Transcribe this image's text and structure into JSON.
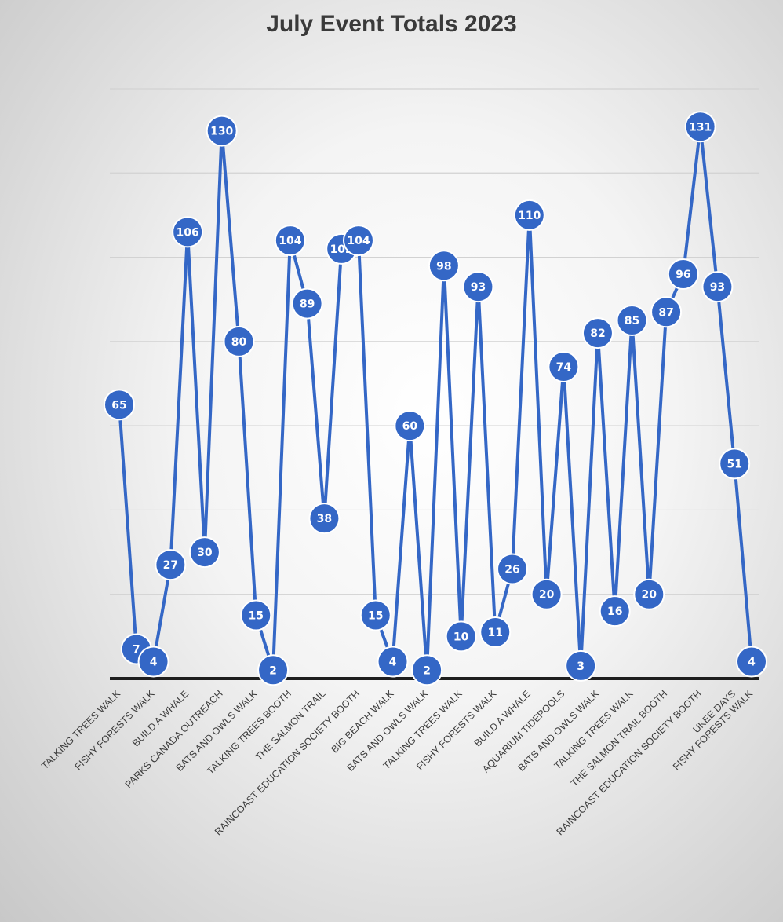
{
  "chart_data": {
    "type": "line",
    "title": "July Event Totals 2023",
    "xlabel": "",
    "ylabel": "",
    "ylim": [
      0,
      140
    ],
    "grid": true,
    "legend": "none",
    "line_color": "#3467C6",
    "points": [
      {
        "value": 65,
        "category": "TALKING TREES WALK"
      },
      {
        "value": 7,
        "category": ""
      },
      {
        "value": 4,
        "category": "FISHY FORESTS WALK"
      },
      {
        "value": 27,
        "category": ""
      },
      {
        "value": 106,
        "category": "BUILD A WHALE"
      },
      {
        "value": 30,
        "category": ""
      },
      {
        "value": 130,
        "category": "PARKS CANADA OUTREACH"
      },
      {
        "value": 80,
        "category": ""
      },
      {
        "value": 15,
        "category": "BATS AND OWLS WALK"
      },
      {
        "value": 2,
        "category": ""
      },
      {
        "value": 104,
        "category": "TALKING TREES BOOTH"
      },
      {
        "value": 89,
        "category": ""
      },
      {
        "value": 38,
        "category": "THE SALMON TRAIL"
      },
      {
        "value": 102,
        "category": ""
      },
      {
        "value": 104,
        "category": "RAINCOAST EDUCATION SOCIETY BOOTH"
      },
      {
        "value": 15,
        "category": ""
      },
      {
        "value": 4,
        "category": "BIG BEACH WALK"
      },
      {
        "value": 60,
        "category": ""
      },
      {
        "value": 2,
        "category": "BATS AND OWLS WALK"
      },
      {
        "value": 98,
        "category": ""
      },
      {
        "value": 10,
        "category": "TALKING TREES WALK"
      },
      {
        "value": 93,
        "category": ""
      },
      {
        "value": 11,
        "category": "FISHY FORESTS WALK"
      },
      {
        "value": 26,
        "category": ""
      },
      {
        "value": 110,
        "category": "BUILD A WHALE"
      },
      {
        "value": 20,
        "category": ""
      },
      {
        "value": 74,
        "category": "AQUARIUM TIDEPOOLS"
      },
      {
        "value": 3,
        "category": ""
      },
      {
        "value": 82,
        "category": "BATS AND OWLS WALK"
      },
      {
        "value": 16,
        "category": ""
      },
      {
        "value": 85,
        "category": "TALKING TREES WALK"
      },
      {
        "value": 20,
        "category": ""
      },
      {
        "value": 87,
        "category": "THE SALMON TRAIL BOOTH"
      },
      {
        "value": 96,
        "category": ""
      },
      {
        "value": 131,
        "category": "RAINCOAST EDUCATION SOCIETY BOOTH"
      },
      {
        "value": 93,
        "category": ""
      },
      {
        "value": 51,
        "category": "UKEE DAYS"
      },
      {
        "value": 4,
        "category": "FISHY FORESTS WALK"
      }
    ]
  }
}
